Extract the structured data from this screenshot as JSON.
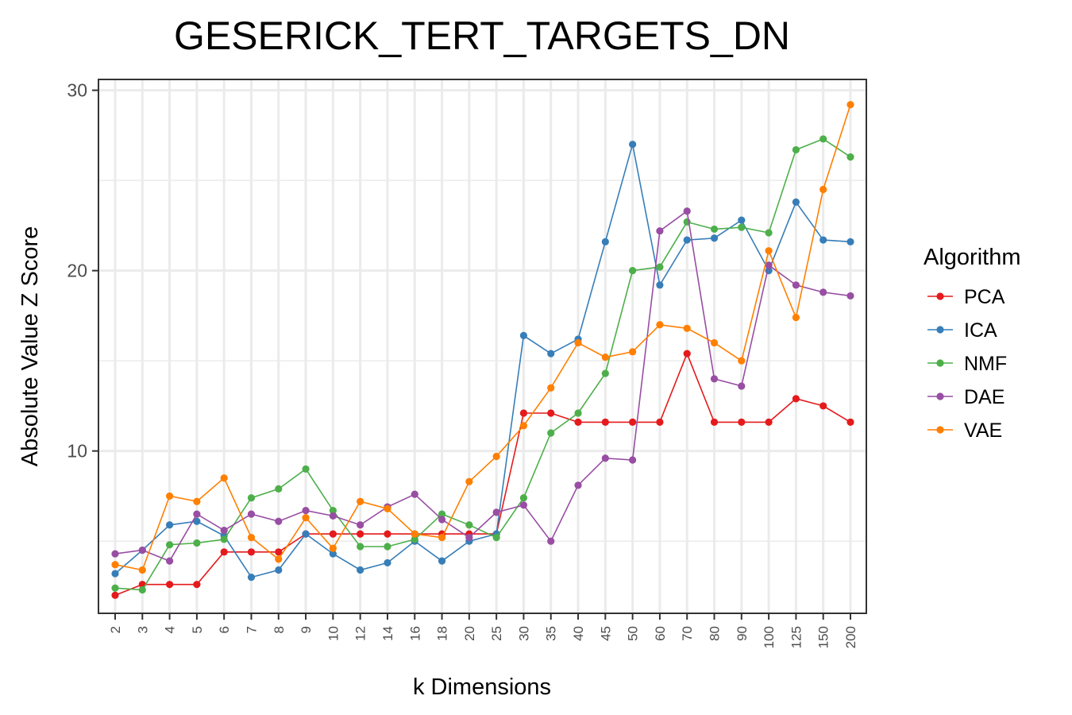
{
  "chart_data": {
    "type": "line",
    "title": "GESERICK_TERT_TARGETS_DN",
    "xlabel": "k Dimensions",
    "ylabel": "Absolute Value Z Score",
    "categories": [
      "2",
      "3",
      "4",
      "5",
      "6",
      "7",
      "8",
      "9",
      "10",
      "12",
      "14",
      "16",
      "18",
      "20",
      "25",
      "30",
      "35",
      "40",
      "45",
      "50",
      "60",
      "70",
      "80",
      "90",
      "100",
      "125",
      "150",
      "200"
    ],
    "yticks": [
      10,
      20,
      30
    ],
    "ylim": [
      1.0,
      30.6
    ],
    "grid": true,
    "legend_title": "Algorithm",
    "legend_position": "right",
    "series": [
      {
        "name": "PCA",
        "color": "#e41a1c",
        "values": [
          2.0,
          2.6,
          2.6,
          2.6,
          4.4,
          4.4,
          4.4,
          5.4,
          5.4,
          5.4,
          5.4,
          5.4,
          5.4,
          5.4,
          5.4,
          12.1,
          12.1,
          11.6,
          11.6,
          11.6,
          11.6,
          15.4,
          11.6,
          11.6,
          11.6,
          12.9,
          12.5,
          11.6
        ]
      },
      {
        "name": "ICA",
        "color": "#377eb8",
        "values": [
          3.2,
          4.5,
          5.9,
          6.1,
          5.3,
          3.0,
          3.4,
          5.4,
          4.3,
          3.4,
          3.8,
          5.0,
          3.9,
          5.0,
          5.4,
          16.4,
          15.4,
          16.2,
          21.6,
          27.0,
          19.2,
          21.7,
          21.8,
          22.8,
          20.0,
          23.8,
          21.7,
          21.6
        ]
      },
      {
        "name": "NMF",
        "color": "#4daf4a",
        "values": [
          2.4,
          2.3,
          4.8,
          4.9,
          5.1,
          7.4,
          7.9,
          9.0,
          6.7,
          4.7,
          4.7,
          5.1,
          6.5,
          5.9,
          5.2,
          7.4,
          11.0,
          12.1,
          14.3,
          20.0,
          20.2,
          22.7,
          22.3,
          22.4,
          22.1,
          26.7,
          27.3,
          26.3
        ]
      },
      {
        "name": "DAE",
        "color": "#984ea3",
        "values": [
          4.3,
          4.5,
          3.9,
          6.5,
          5.6,
          6.5,
          6.1,
          6.7,
          6.4,
          5.9,
          6.9,
          7.6,
          6.2,
          5.2,
          6.6,
          7.0,
          5.0,
          8.1,
          9.6,
          9.5,
          22.2,
          23.3,
          14.0,
          13.6,
          20.3,
          19.2,
          18.8,
          18.6
        ]
      },
      {
        "name": "VAE",
        "color": "#ff7f00",
        "values": [
          3.7,
          3.4,
          7.5,
          7.2,
          8.5,
          5.2,
          4.0,
          6.3,
          4.6,
          7.2,
          6.8,
          5.4,
          5.2,
          8.3,
          9.7,
          11.4,
          13.5,
          16.0,
          15.2,
          15.5,
          17.0,
          16.8,
          16.0,
          15.0,
          21.1,
          17.4,
          24.5,
          29.2
        ]
      }
    ]
  }
}
